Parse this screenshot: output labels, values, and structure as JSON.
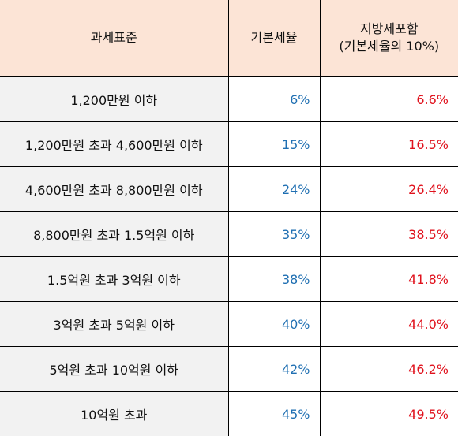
{
  "header": {
    "col_bracket": "과세표준",
    "col_base_rate": "기본세율",
    "col_local_line1": "지방세포함",
    "col_local_line2": "(기본세율의 10%)"
  },
  "rows": [
    {
      "bracket": "1,200만원 이하",
      "base_rate": "6%",
      "local_rate": "6.6%"
    },
    {
      "bracket": "1,200만원 초과 4,600만원 이하",
      "base_rate": "15%",
      "local_rate": "16.5%"
    },
    {
      "bracket": "4,600만원 초과 8,800만원 이하",
      "base_rate": "24%",
      "local_rate": "26.4%"
    },
    {
      "bracket": "8,800만원 초과 1.5억원 이하",
      "base_rate": "35%",
      "local_rate": "38.5%"
    },
    {
      "bracket": "1.5억원 초과 3억원 이하",
      "base_rate": "38%",
      "local_rate": "41.8%"
    },
    {
      "bracket": "3억원 초과 5억원 이하",
      "base_rate": "40%",
      "local_rate": "44.0%"
    },
    {
      "bracket": "5억원 초과 10억원 이하",
      "base_rate": "42%",
      "local_rate": "46.2%"
    },
    {
      "bracket": "10억원 초과",
      "base_rate": "45%",
      "local_rate": "49.5%"
    }
  ],
  "colors": {
    "header_background": "#fce4d6",
    "bracket_background": "#f2f2f2",
    "base_rate_text": "#1f6fb2",
    "local_rate_text": "#e0111c",
    "border": "#000000"
  }
}
